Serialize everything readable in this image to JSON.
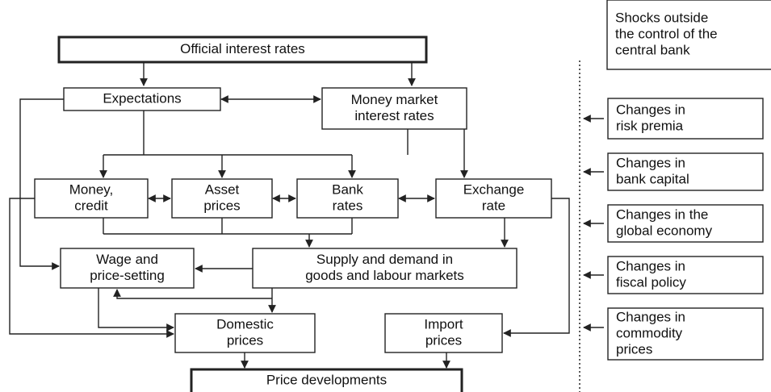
{
  "nodes": [
    {
      "lines": [
        "Official interest rates"
      ]
    },
    {
      "lines": [
        "Expectations"
      ]
    },
    {
      "lines": [
        "Money market",
        "interest rates"
      ]
    },
    {
      "lines": [
        "Money,",
        "credit"
      ]
    },
    {
      "lines": [
        "Asset",
        "prices"
      ]
    },
    {
      "lines": [
        "Bank",
        "rates"
      ]
    },
    {
      "lines": [
        "Exchange",
        "rate"
      ]
    },
    {
      "lines": [
        "Wage and",
        "price-setting"
      ]
    },
    {
      "lines": [
        "Supply and demand in",
        "goods and labour markets"
      ]
    },
    {
      "lines": [
        "Domestic",
        "prices"
      ]
    },
    {
      "lines": [
        "Import",
        "prices"
      ]
    },
    {
      "lines": [
        "Price developments"
      ]
    }
  ],
  "shocks": {
    "title": [
      "Shocks outside",
      "the control of the",
      "central bank"
    ],
    "items": [
      {
        "lines": [
          "Changes in",
          "risk premia"
        ]
      },
      {
        "lines": [
          "Changes in",
          "bank capital"
        ]
      },
      {
        "lines": [
          "Changes in the",
          "global economy"
        ]
      },
      {
        "lines": [
          "Changes in",
          "fiscal policy"
        ]
      },
      {
        "lines": [
          "Changes in",
          "commodity",
          "prices"
        ]
      }
    ]
  }
}
